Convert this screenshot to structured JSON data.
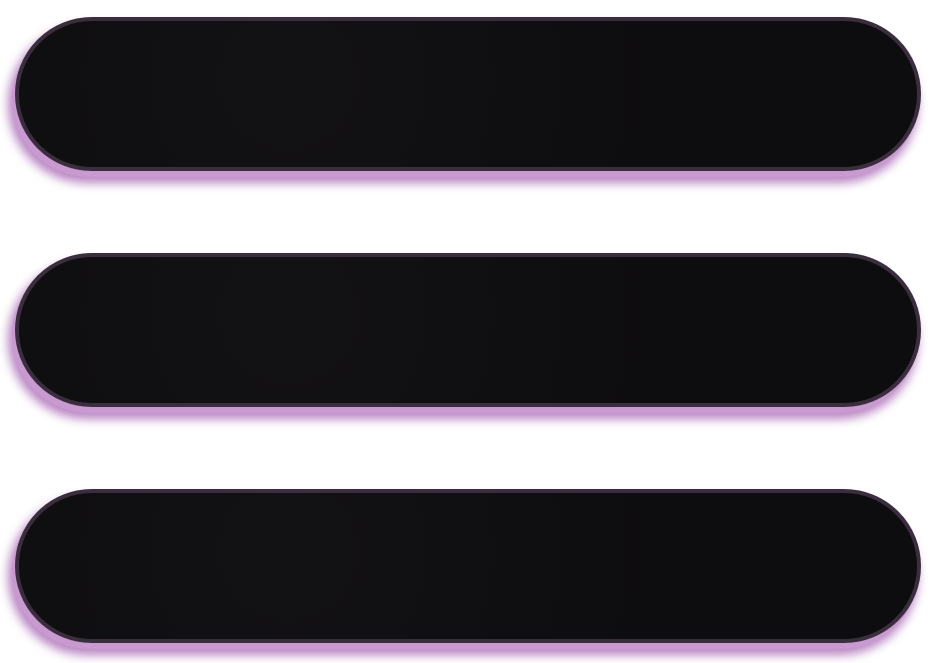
{
  "icon": {
    "name": "hamburger-menu",
    "bar_count": 3
  },
  "colors": {
    "background": "#ffffff",
    "bar_fill": "#0d0c0e",
    "bar_border": "#3a2d3e",
    "bar_glow": "#b884c2",
    "bar_glow_strong": "#c89ad0"
  }
}
